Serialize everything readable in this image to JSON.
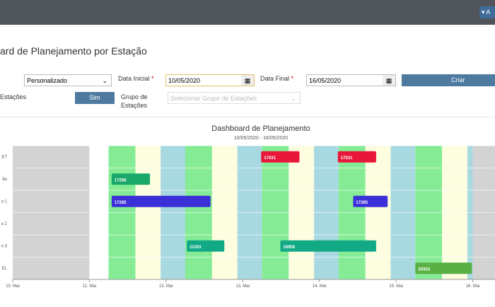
{
  "header": {
    "button": "▾ A"
  },
  "page_title": "ard de Planejamento por Estação",
  "form": {
    "period": "Personalizado",
    "start_label": "Data Inicial",
    "start_value": "10/05/2020",
    "end_label": "Data Final",
    "end_value": "16/05/2020",
    "create": "Criar",
    "stations_label": "Estações",
    "stations_button": "Sim",
    "group_label": "Grupo de Estações",
    "group_placeholder": "Selecionar Grupo de Estações",
    "required": "*"
  },
  "chart": {
    "title": "Dashboard de Planejamento",
    "subtitle": "10/05/2020 - 16/05/2020",
    "rows": [
      "ET",
      "ão",
      "o 1",
      "o 2",
      "o 3",
      "EL"
    ],
    "xlim": [
      10,
      16.29
    ],
    "xticks": [
      {
        "value": 10,
        "label": "10. Mai"
      },
      {
        "value": 11,
        "label": "11. Mai"
      },
      {
        "value": 12,
        "label": "12. Mai"
      },
      {
        "value": 13,
        "label": "13. Mai"
      },
      {
        "value": 14,
        "label": "14. Mai"
      },
      {
        "value": 15,
        "label": "15. Mai"
      },
      {
        "value": 16,
        "label": "16. Mai"
      }
    ],
    "bands": [
      {
        "start": 10,
        "end": 11,
        "color": "#d3d3d3"
      },
      {
        "start": 11,
        "end": 11.25,
        "color": "#ffffff"
      },
      {
        "start": 11.25,
        "end": 11.6,
        "color": "#85ec95"
      },
      {
        "start": 11.6,
        "end": 11.93,
        "color": "#fdfde0"
      },
      {
        "start": 11.93,
        "end": 12.25,
        "color": "#a8d8e0"
      },
      {
        "start": 12.25,
        "end": 12.6,
        "color": "#85ec95"
      },
      {
        "start": 12.6,
        "end": 12.93,
        "color": "#fdfde0"
      },
      {
        "start": 12.93,
        "end": 13.25,
        "color": "#a8d8e0"
      },
      {
        "start": 13.25,
        "end": 13.6,
        "color": "#85ec95"
      },
      {
        "start": 13.6,
        "end": 13.93,
        "color": "#fdfde0"
      },
      {
        "start": 13.93,
        "end": 14.25,
        "color": "#a8d8e0"
      },
      {
        "start": 14.25,
        "end": 14.6,
        "color": "#85ec95"
      },
      {
        "start": 14.6,
        "end": 14.93,
        "color": "#fdfde0"
      },
      {
        "start": 14.93,
        "end": 15.25,
        "color": "#a8d8e0"
      },
      {
        "start": 15.25,
        "end": 15.6,
        "color": "#85ec95"
      },
      {
        "start": 15.6,
        "end": 15.93,
        "color": "#fdfde0"
      },
      {
        "start": 15.93,
        "end": 16,
        "color": "#a8d8e0"
      },
      {
        "start": 16,
        "end": 16.29,
        "color": "#d3d3d3"
      }
    ],
    "bars": [
      {
        "row": 0,
        "start": 13.24,
        "end": 13.74,
        "label": "17031",
        "color": "#e8173a"
      },
      {
        "row": 0,
        "start": 14.24,
        "end": 14.74,
        "label": "17031",
        "color": "#e8173a"
      },
      {
        "row": 1,
        "start": 11.29,
        "end": 11.79,
        "label": "17268",
        "color": "#1aa86a"
      },
      {
        "row": 2,
        "start": 11.29,
        "end": 12.58,
        "label": "17285",
        "color": "#3b2fd8"
      },
      {
        "row": 2,
        "start": 14.44,
        "end": 14.89,
        "label": "17285",
        "color": "#3b2fd8"
      },
      {
        "row": 4,
        "start": 12.27,
        "end": 12.76,
        "label": "11203",
        "color": "#12a985"
      },
      {
        "row": 4,
        "start": 13.49,
        "end": 14.74,
        "label": "16958",
        "color": "#12a985"
      },
      {
        "row": 5,
        "start": 15.25,
        "end": 15.99,
        "label": "20353",
        "color": "#5ab045"
      }
    ]
  }
}
